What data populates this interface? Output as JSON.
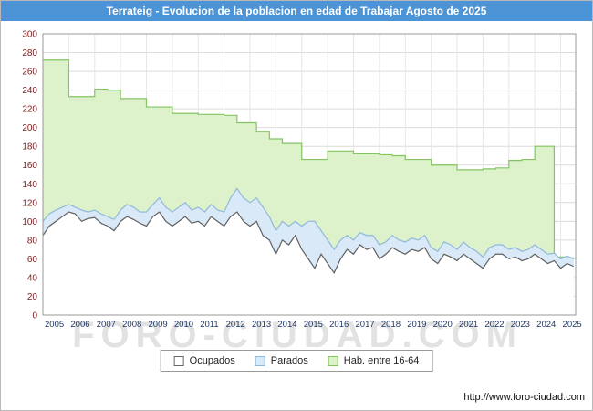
{
  "title": "Terrateig - Evolucion de la poblacion en edad de Trabajar Agosto de 2025",
  "watermark": "FORO-CIUDAD.COM",
  "footer_url": "http://www.foro-ciudad.com",
  "colors": {
    "titlebar": "#4d94d6",
    "grid": "#dcdcdc",
    "plot_border": "#999999",
    "ytick_color": "#7b2020",
    "xtick_color": "#1f3864"
  },
  "legend": [
    {
      "label": "Ocupados",
      "fill": "#ffffff",
      "stroke": "#666666"
    },
    {
      "label": "Parados",
      "fill": "#d9e9f7",
      "stroke": "#8fb9da"
    },
    {
      "label": "Hab. entre 16-64",
      "fill": "#ddf1cb",
      "stroke": "#82c561"
    }
  ],
  "chart_data": {
    "type": "area",
    "title": "Terrateig - Evolucion de la poblacion en edad de Trabajar Agosto de 2025",
    "xlabel": "",
    "ylabel": "",
    "ylim": [
      0,
      300
    ],
    "ytick_step": 20,
    "x_start": 2005,
    "x_step": 0.25,
    "x_range": [
      2005,
      2025.58
    ],
    "xticks": [
      2005,
      2006,
      2007,
      2008,
      2009,
      2010,
      2011,
      2012,
      2013,
      2014,
      2015,
      2016,
      2017,
      2018,
      2019,
      2020,
      2021,
      2022,
      2023,
      2024,
      2025
    ],
    "grid": true,
    "legend_position": "bottom",
    "series": [
      {
        "name": "Hab. entre 16-64",
        "fill": "#ddf1cb",
        "stroke": "#82c561",
        "step": true,
        "values": [
          272,
          272,
          272,
          272,
          233,
          233,
          233,
          233,
          241,
          241,
          240,
          240,
          231,
          231,
          231,
          231,
          222,
          222,
          222,
          222,
          215,
          215,
          215,
          215,
          214,
          214,
          214,
          214,
          213,
          213,
          205,
          205,
          205,
          196,
          196,
          188,
          188,
          183,
          183,
          183,
          166,
          166,
          166,
          166,
          175,
          175,
          175,
          175,
          172,
          172,
          172,
          172,
          171,
          171,
          170,
          170,
          166,
          166,
          166,
          166,
          160,
          160,
          160,
          160,
          155,
          155,
          155,
          155,
          156,
          156,
          157,
          157,
          165,
          165,
          166,
          166,
          180,
          180,
          180,
          62,
          62,
          61,
          60
        ]
      },
      {
        "name": "Parados",
        "fill": "#d9e9f7",
        "stroke": "#8fb9da",
        "step": false,
        "values": [
          100,
          108,
          112,
          115,
          118,
          115,
          112,
          110,
          112,
          108,
          105,
          102,
          112,
          118,
          115,
          110,
          110,
          118,
          125,
          115,
          110,
          115,
          120,
          112,
          115,
          110,
          118,
          112,
          110,
          125,
          135,
          125,
          120,
          125,
          115,
          105,
          90,
          100,
          95,
          100,
          95,
          100,
          100,
          90,
          80,
          70,
          80,
          85,
          80,
          88,
          85,
          85,
          75,
          78,
          85,
          80,
          78,
          82,
          80,
          85,
          72,
          68,
          78,
          75,
          70,
          78,
          72,
          68,
          62,
          72,
          75,
          75,
          70,
          72,
          68,
          70,
          75,
          70,
          65,
          66,
          60,
          63,
          60
        ]
      },
      {
        "name": "Ocupados",
        "fill": "#ffffff",
        "stroke": "#606060",
        "step": false,
        "values": [
          85,
          95,
          100,
          105,
          110,
          108,
          100,
          103,
          104,
          98,
          95,
          90,
          100,
          105,
          102,
          98,
          95,
          105,
          110,
          100,
          95,
          100,
          105,
          98,
          100,
          95,
          105,
          100,
          95,
          105,
          110,
          100,
          95,
          100,
          85,
          80,
          65,
          80,
          75,
          85,
          70,
          60,
          50,
          65,
          55,
          45,
          60,
          70,
          65,
          75,
          70,
          72,
          60,
          65,
          72,
          68,
          65,
          70,
          68,
          72,
          60,
          55,
          65,
          62,
          58,
          65,
          60,
          55,
          50,
          60,
          65,
          65,
          60,
          62,
          58,
          60,
          65,
          60,
          55,
          58,
          50,
          55,
          52
        ]
      }
    ]
  }
}
